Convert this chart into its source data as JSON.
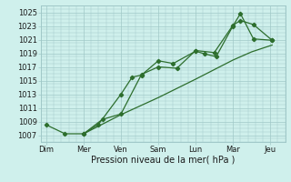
{
  "xlabel": "Pression niveau de la mer( hPa )",
  "bg_color": "#cff0ec",
  "grid_color": "#a0c8c8",
  "line_color": "#2d6e2d",
  "ylim": [
    1006,
    1026
  ],
  "yticks": [
    1007,
    1009,
    1011,
    1013,
    1015,
    1017,
    1019,
    1021,
    1023,
    1025
  ],
  "xtick_labels": [
    "Dim",
    "Mer",
    "Ven",
    "Sam",
    "Lun",
    "Mar",
    "Jeu"
  ],
  "xtick_pos": [
    0,
    1,
    2,
    3,
    4,
    5,
    6
  ],
  "xlim": [
    -0.15,
    6.4
  ],
  "line1_x": [
    0.0,
    0.5,
    1.0,
    1.4,
    2.0,
    2.3,
    2.55,
    3.0,
    3.4,
    4.0,
    4.25,
    4.55,
    5.0,
    5.2,
    5.55,
    6.05
  ],
  "line1_y": [
    1008.5,
    1007.2,
    1007.2,
    1008.6,
    1013.0,
    1015.5,
    1015.8,
    1017.9,
    1017.5,
    1019.3,
    1018.9,
    1018.5,
    1023.0,
    1024.8,
    1021.1,
    1020.9
  ],
  "line2_x": [
    1.0,
    1.5,
    2.0,
    2.55,
    3.0,
    3.5,
    4.0,
    4.5,
    5.0,
    5.2,
    5.55,
    6.05
  ],
  "line2_y": [
    1007.2,
    1009.3,
    1010.1,
    1015.9,
    1017.0,
    1016.8,
    1019.4,
    1019.1,
    1023.1,
    1023.8,
    1023.2,
    1020.9
  ],
  "line3_x": [
    1.0,
    2.0,
    3.0,
    4.0,
    5.0,
    5.5,
    6.05
  ],
  "line3_y": [
    1007.2,
    1010.0,
    1012.5,
    1015.2,
    1018.0,
    1019.2,
    1020.2
  ]
}
